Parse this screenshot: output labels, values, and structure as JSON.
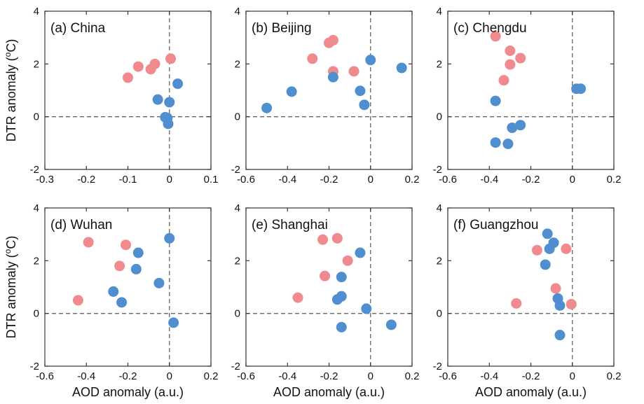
{
  "figure": {
    "xlabel": "AOD anomaly (a.u.)",
    "ylabel": "DTR anomaly (",
    "ylabel_sup": "o",
    "ylabel_end": "C)"
  },
  "colors": {
    "pink": "#f08a8e",
    "blue": "#4f8fd0",
    "axis": "#333333",
    "refline": "#666666"
  },
  "chart_data": [
    {
      "type": "scatter",
      "label": "(a) China",
      "xlim": [
        -0.3,
        0.1
      ],
      "ylim": [
        -2,
        4
      ],
      "xticks": [
        "-0.3",
        "-0.2",
        "-0.1",
        "0",
        "0.1"
      ],
      "xtick_values": [
        -0.3,
        -0.2,
        -0.1,
        0,
        0.1
      ],
      "yticks": [
        "-2",
        "0",
        "2",
        "4"
      ],
      "ytick_values": [
        -2,
        0,
        2,
        4
      ],
      "xlabel": "",
      "ylabel": "DTR anomaly (°C)",
      "series": [
        {
          "color": "pink",
          "points": [
            [
              -0.1,
              1.48
            ],
            [
              -0.075,
              1.9
            ],
            [
              -0.045,
              1.8
            ],
            [
              -0.035,
              2.0
            ],
            [
              0.003,
              2.2
            ]
          ]
        },
        {
          "color": "blue",
          "points": [
            [
              -0.028,
              0.65
            ],
            [
              0.02,
              1.25
            ],
            [
              0.0,
              0.55
            ],
            [
              -0.01,
              -0.02
            ],
            [
              -0.005,
              -0.05
            ],
            [
              -0.003,
              -0.27
            ]
          ]
        }
      ]
    },
    {
      "type": "scatter",
      "label": "(b) Beijing",
      "xlim": [
        -0.6,
        0.2
      ],
      "ylim": [
        -2,
        4
      ],
      "xticks": [
        "-0.6",
        "-0.4",
        "-0.2",
        "0",
        "0.2"
      ],
      "xtick_values": [
        -0.6,
        -0.4,
        -0.2,
        0,
        0.2
      ],
      "yticks": [
        "-2",
        "0",
        "2",
        "4"
      ],
      "ytick_values": [
        -2,
        0,
        2,
        4
      ],
      "xlabel": "",
      "ylabel": "",
      "series": [
        {
          "color": "pink",
          "points": [
            [
              -0.28,
              2.2
            ],
            [
              -0.2,
              2.8
            ],
            [
              -0.18,
              2.9
            ],
            [
              -0.18,
              1.72
            ],
            [
              -0.08,
              1.72
            ]
          ]
        },
        {
          "color": "blue",
          "points": [
            [
              -0.5,
              0.33
            ],
            [
              -0.38,
              0.95
            ],
            [
              -0.18,
              1.5
            ],
            [
              0.0,
              2.15
            ],
            [
              0.15,
              1.85
            ],
            [
              -0.05,
              0.98
            ],
            [
              -0.03,
              0.45
            ]
          ]
        }
      ]
    },
    {
      "type": "scatter",
      "label": "(c) Chengdu",
      "xlim": [
        -0.6,
        0.2
      ],
      "ylim": [
        -2,
        4
      ],
      "xticks": [
        "-0.6",
        "-0.4",
        "-0.2",
        "0",
        "0.2"
      ],
      "xtick_values": [
        -0.6,
        -0.4,
        -0.2,
        0,
        0.2
      ],
      "yticks": [
        "-2",
        "0",
        "2",
        "4"
      ],
      "ytick_values": [
        -2,
        0,
        2,
        4
      ],
      "xlabel": "",
      "ylabel": "",
      "series": [
        {
          "color": "pink",
          "points": [
            [
              -0.37,
              3.05
            ],
            [
              -0.3,
              2.5
            ],
            [
              -0.25,
              2.22
            ],
            [
              -0.3,
              1.98
            ],
            [
              -0.33,
              1.38
            ]
          ]
        },
        {
          "color": "blue",
          "points": [
            [
              -0.37,
              0.6
            ],
            [
              -0.29,
              -0.42
            ],
            [
              -0.25,
              -0.32
            ],
            [
              -0.37,
              -0.98
            ],
            [
              -0.31,
              -1.03
            ],
            [
              0.02,
              1.06
            ],
            [
              0.04,
              1.06
            ]
          ]
        }
      ]
    },
    {
      "type": "scatter",
      "label": "(d) Wuhan",
      "xlim": [
        -0.6,
        0.2
      ],
      "ylim": [
        -2,
        4
      ],
      "xticks": [
        "-0.6",
        "-0.4",
        "-0.2",
        "0",
        "0.2"
      ],
      "xtick_values": [
        -0.6,
        -0.4,
        -0.2,
        0,
        0.2
      ],
      "yticks": [
        "-2",
        "0",
        "2",
        "4"
      ],
      "ytick_values": [
        -2,
        0,
        2,
        4
      ],
      "xlabel": "AOD anomaly (a.u.)",
      "ylabel": "DTR anomaly (°C)",
      "series": [
        {
          "color": "pink",
          "points": [
            [
              -0.39,
              2.7
            ],
            [
              -0.21,
              2.6
            ],
            [
              -0.24,
              1.8
            ],
            [
              -0.44,
              0.5
            ]
          ]
        },
        {
          "color": "blue",
          "points": [
            [
              -0.15,
              2.3
            ],
            [
              -0.16,
              1.68
            ],
            [
              0.0,
              2.85
            ],
            [
              -0.05,
              1.15
            ],
            [
              -0.27,
              0.83
            ],
            [
              -0.23,
              0.42
            ],
            [
              0.02,
              -0.35
            ]
          ]
        }
      ]
    },
    {
      "type": "scatter",
      "label": "(e) Shanghai",
      "xlim": [
        -0.6,
        0.2
      ],
      "ylim": [
        -2,
        4
      ],
      "xticks": [
        "-0.6",
        "-0.4",
        "-0.2",
        "0",
        "0.2"
      ],
      "xtick_values": [
        -0.6,
        -0.4,
        -0.2,
        0,
        0.2
      ],
      "yticks": [
        "-2",
        "0",
        "2",
        "4"
      ],
      "ytick_values": [
        -2,
        0,
        2,
        4
      ],
      "xlabel": "AOD anomaly (a.u.)",
      "ylabel": "",
      "series": [
        {
          "color": "pink",
          "points": [
            [
              -0.23,
              2.8
            ],
            [
              -0.16,
              2.85
            ],
            [
              -0.11,
              2.0
            ],
            [
              -0.22,
              1.42
            ],
            [
              -0.35,
              0.6
            ]
          ]
        },
        {
          "color": "blue",
          "points": [
            [
              -0.05,
              2.3
            ],
            [
              -0.14,
              1.38
            ],
            [
              -0.14,
              0.65
            ],
            [
              -0.16,
              0.53
            ],
            [
              -0.02,
              0.18
            ],
            [
              -0.14,
              -0.52
            ],
            [
              0.1,
              -0.43
            ]
          ]
        }
      ]
    },
    {
      "type": "scatter",
      "label": "(f) Guangzhou",
      "xlim": [
        -0.6,
        0.2
      ],
      "ylim": [
        -2,
        4
      ],
      "xticks": [
        "-0.6",
        "-0.4",
        "-0.2",
        "0",
        "0.2"
      ],
      "xtick_values": [
        -0.6,
        -0.4,
        -0.2,
        0,
        0.2
      ],
      "yticks": [
        "-2",
        "0",
        "2",
        "4"
      ],
      "ytick_values": [
        -2,
        0,
        2,
        4
      ],
      "xlabel": "AOD anomaly (a.u.)",
      "ylabel": "",
      "series": [
        {
          "color": "pink",
          "points": [
            [
              -0.17,
              2.4
            ],
            [
              -0.03,
              2.45
            ],
            [
              -0.08,
              0.95
            ],
            [
              -0.27,
              0.38
            ],
            [
              -0.005,
              0.35
            ]
          ]
        },
        {
          "color": "blue",
          "points": [
            [
              -0.12,
              3.02
            ],
            [
              -0.09,
              2.68
            ],
            [
              -0.11,
              2.45
            ],
            [
              -0.13,
              1.85
            ],
            [
              -0.07,
              0.57
            ],
            [
              -0.06,
              0.3
            ],
            [
              -0.06,
              -0.82
            ]
          ]
        }
      ]
    }
  ]
}
